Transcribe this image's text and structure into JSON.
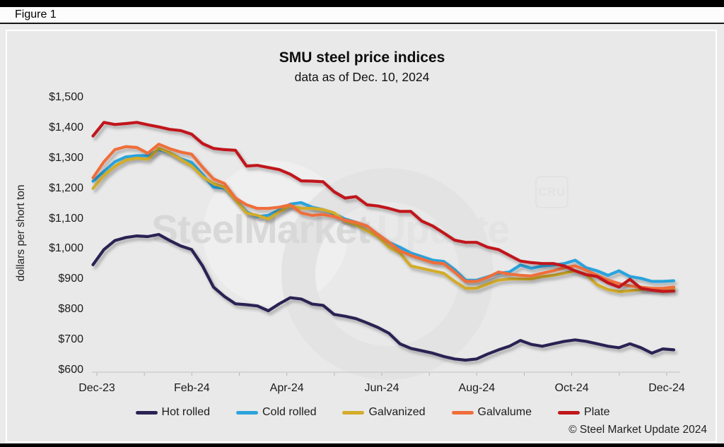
{
  "figure": {
    "label": "Figure 1"
  },
  "chart": {
    "title": "SMU steel price indices",
    "subtitle": "data as of Dec. 10, 2024",
    "y_axis_label": "dollars per short ton"
  },
  "watermark": {
    "brand_bold": "SteelMarket",
    "brand_light": "Update",
    "cru": "CRU"
  },
  "footer": {
    "copyright": "© Steel Market Update 2024"
  },
  "chart_data": {
    "type": "line",
    "title": "SMU steel price indices",
    "subtitle": "data as of Dec. 10, 2024",
    "ylabel": "dollars per short ton",
    "ylim": [
      600,
      1500
    ],
    "grid": false,
    "legend_position": "bottom",
    "frequency": "weekly",
    "x_range": [
      "Dec-23",
      "Dec-24"
    ],
    "x_tick_labels": [
      "Dec-23",
      "Feb-24",
      "Apr-24",
      "Jun-24",
      "Aug-24",
      "Oct-24",
      "Dec-24"
    ],
    "y_ticks": [
      {
        "label": "$1,500",
        "value": 1500
      },
      {
        "label": "$1,400",
        "value": 1400
      },
      {
        "label": "$1,300",
        "value": 1300
      },
      {
        "label": "$1,200",
        "value": 1200
      },
      {
        "label": "$1,100",
        "value": 1100
      },
      {
        "label": "$1,000",
        "value": 1000
      },
      {
        "label": "$900",
        "value": 900
      },
      {
        "label": "$800",
        "value": 800
      },
      {
        "label": "$700",
        "value": 700
      },
      {
        "label": "$600",
        "value": 600
      }
    ],
    "series": [
      {
        "name": "Hot rolled",
        "color": "#2b2353",
        "values": [
          950,
          1000,
          1030,
          1040,
          1045,
          1043,
          1050,
          1030,
          1012,
          1000,
          946,
          876,
          845,
          821,
          818,
          814,
          798,
          821,
          841,
          837,
          820,
          816,
          786,
          780,
          772,
          758,
          743,
          724,
          689,
          674,
          666,
          658,
          647,
          639,
          635,
          639,
          655,
          669,
          681,
          700,
          687,
          681,
          689,
          697,
          702,
          697,
          689,
          681,
          676,
          689,
          676,
          658,
          672,
          669
        ]
      },
      {
        "name": "Cold rolled",
        "color": "#2ba3dc",
        "values": [
          1226,
          1258,
          1290,
          1306,
          1310,
          1310,
          1330,
          1320,
          1300,
          1288,
          1248,
          1206,
          1203,
          1164,
          1125,
          1109,
          1113,
          1131,
          1150,
          1155,
          1140,
          1132,
          1118,
          1101,
          1090,
          1078,
          1050,
          1024,
          1008,
          989,
          977,
          965,
          961,
          934,
          899,
          899,
          910,
          922,
          926,
          949,
          938,
          946,
          949,
          954,
          965,
          940,
          930,
          915,
          930,
          911,
          905,
          895,
          895,
          897
        ]
      },
      {
        "name": "Galvanized",
        "color": "#d3ac2b",
        "values": [
          1202,
          1245,
          1275,
          1296,
          1302,
          1298,
          1335,
          1320,
          1298,
          1276,
          1241,
          1218,
          1206,
          1164,
          1121,
          1113,
          1101,
          1125,
          1145,
          1136,
          1136,
          1132,
          1121,
          1094,
          1082,
          1062,
          1043,
          1008,
          989,
          946,
          938,
          930,
          922,
          895,
          872,
          872,
          886,
          899,
          903,
          903,
          903,
          911,
          915,
          922,
          930,
          918,
          884,
          868,
          861,
          864,
          868,
          872,
          868,
          872
        ]
      },
      {
        "name": "Galvalume",
        "color": "#ef6e3a",
        "values": [
          1237,
          1290,
          1330,
          1340,
          1337,
          1318,
          1348,
          1333,
          1322,
          1315,
          1272,
          1233,
          1218,
          1170,
          1148,
          1136,
          1136,
          1140,
          1148,
          1121,
          1113,
          1116,
          1109,
          1097,
          1090,
          1078,
          1050,
          1024,
          996,
          981,
          969,
          957,
          954,
          926,
          895,
          895,
          908,
          926,
          919,
          915,
          913,
          922,
          930,
          940,
          946,
          932,
          915,
          899,
          888,
          880,
          876,
          872,
          872,
          876
        ]
      },
      {
        "name": "Plate",
        "color": "#c0181c",
        "values": [
          1375,
          1420,
          1413,
          1416,
          1420,
          1412,
          1405,
          1397,
          1393,
          1381,
          1350,
          1334,
          1330,
          1328,
          1276,
          1278,
          1271,
          1264,
          1249,
          1227,
          1226,
          1224,
          1191,
          1170,
          1175,
          1148,
          1144,
          1136,
          1126,
          1126,
          1094,
          1078,
          1055,
          1031,
          1024,
          1024,
          1008,
          1000,
          981,
          962,
          957,
          954,
          954,
          946,
          930,
          917,
          911,
          890,
          876,
          902,
          872,
          866,
          862,
          863
        ]
      }
    ]
  }
}
